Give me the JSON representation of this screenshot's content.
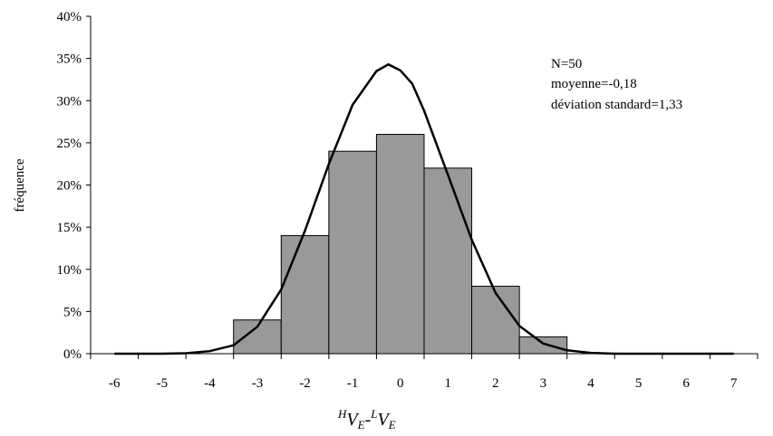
{
  "chart_data": {
    "type": "bar",
    "categories": [
      "-3",
      "-2",
      "-1",
      "0",
      "1",
      "2",
      "3"
    ],
    "bin_ranges": [
      [
        -3.5,
        -2.5
      ],
      [
        -2.5,
        -1.5
      ],
      [
        -1.5,
        -0.5
      ],
      [
        -0.5,
        0.5
      ],
      [
        0.5,
        1.5
      ],
      [
        1.5,
        2.5
      ],
      [
        2.5,
        3.5
      ]
    ],
    "values": [
      4,
      14,
      24,
      26,
      22,
      8,
      2
    ],
    "bar_color": "#999999",
    "curve": {
      "type": "line",
      "x": [
        -6,
        -5,
        -4.5,
        -4,
        -3.5,
        -3,
        -2.5,
        -2,
        -1.5,
        -1,
        -0.5,
        -0.25,
        0,
        0.25,
        0.5,
        1,
        1.5,
        2,
        2.5,
        3,
        3.5,
        4,
        4.5,
        5,
        6,
        7
      ],
      "y": [
        0,
        0,
        0.05,
        0.3,
        1.0,
        3.2,
        7.6,
        14.6,
        22.5,
        29.5,
        33.5,
        34.3,
        33.6,
        32.0,
        28.8,
        21.2,
        13.5,
        7.2,
        3.3,
        1.2,
        0.4,
        0.1,
        0,
        0,
        0,
        0
      ]
    },
    "xticks": [
      "-6",
      "-5",
      "-4",
      "-3",
      "-2",
      "-1",
      "0",
      "1",
      "2",
      "3",
      "4",
      "5",
      "6",
      "7"
    ],
    "xlim": [
      -6.5,
      7.5
    ],
    "yticks": [
      "0%",
      "5%",
      "10%",
      "15%",
      "20%",
      "25%",
      "30%",
      "35%",
      "40%"
    ],
    "ylim": [
      0,
      40
    ],
    "ylabel": "fréquence",
    "xlabel": {
      "sup1": "H",
      "main1": "V",
      "sub1": "E",
      "dash": "-",
      "sup2": "L",
      "main2": "V",
      "sub2": "E"
    },
    "annotations": [
      "N=50",
      "moyenne=-0,18",
      "déviation standard=1,33"
    ],
    "legend": "none",
    "grid": false
  }
}
